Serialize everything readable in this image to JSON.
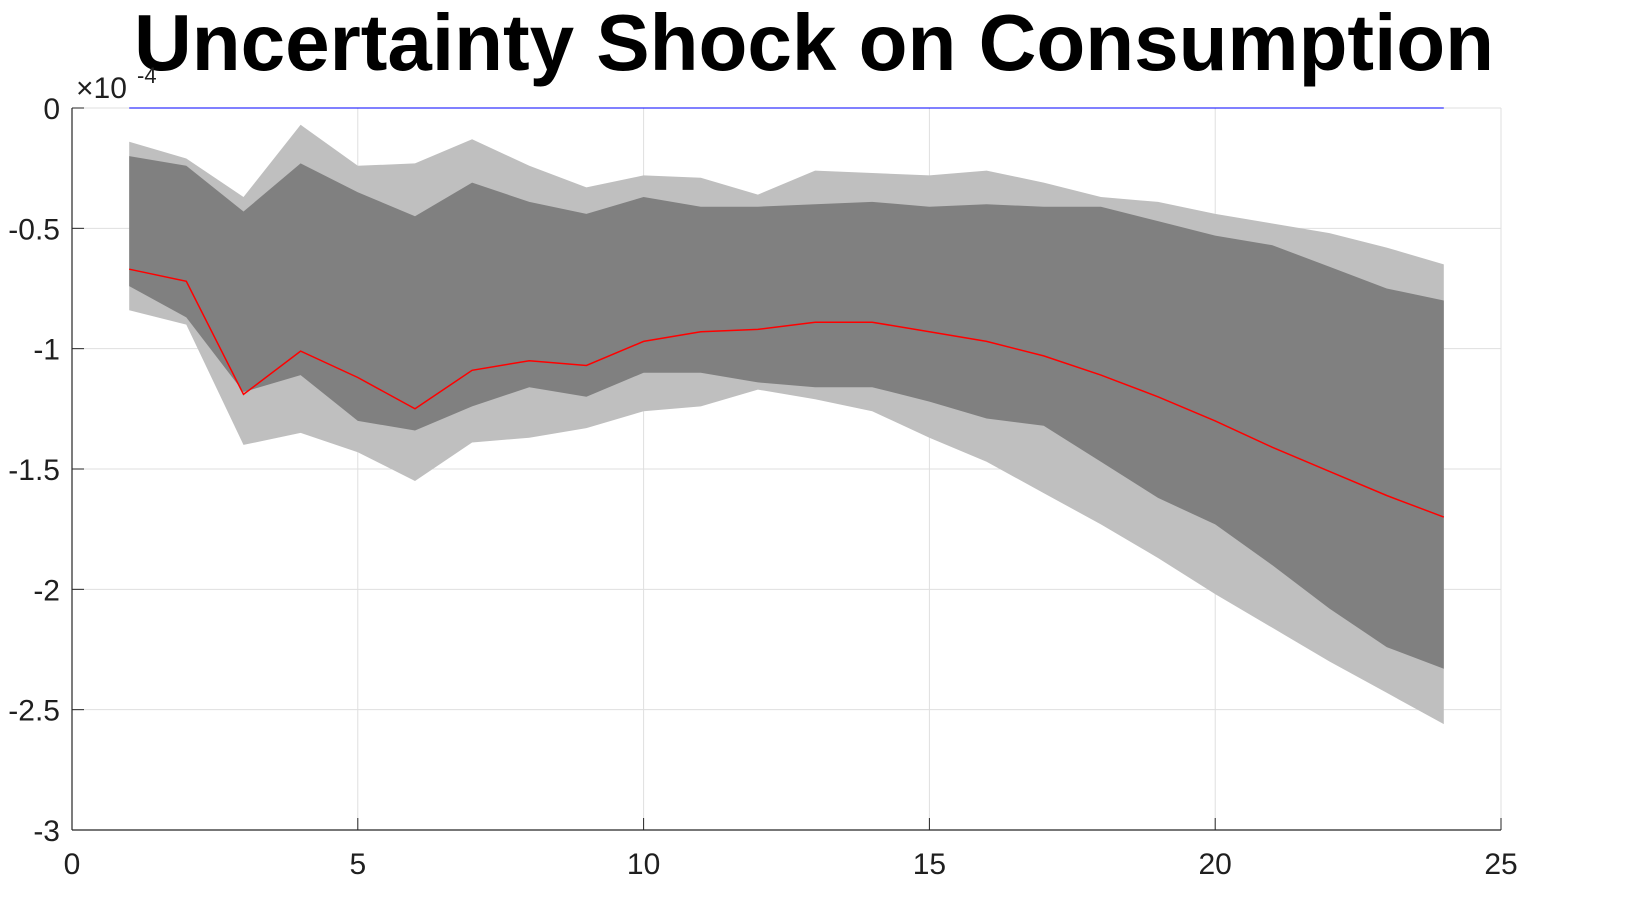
{
  "chart_data": {
    "type": "area",
    "title": "Uncertainty Shock on Consumption",
    "xlabel": "",
    "ylabel": "",
    "xlim": [
      0,
      25
    ],
    "ylim": [
      -3,
      0
    ],
    "x_ticks": [
      "0",
      "5",
      "10",
      "15",
      "20",
      "25"
    ],
    "y_ticks": [
      "0",
      "-0.5",
      "-1",
      "-1.5",
      "-2",
      "-2.5",
      "-3"
    ],
    "y_exponent_label": "×10",
    "y_exponent_power": "-4",
    "grid": true,
    "legend": "none",
    "x": [
      1,
      2,
      3,
      4,
      5,
      6,
      7,
      8,
      9,
      10,
      11,
      12,
      13,
      14,
      15,
      16,
      17,
      18,
      19,
      20,
      21,
      22,
      23,
      24
    ],
    "series": [
      {
        "role": "outer-band-upper",
        "color": "#bfbfbf",
        "values": [
          -0.14,
          -0.21,
          -0.37,
          -0.07,
          -0.24,
          -0.23,
          -0.13,
          -0.24,
          -0.33,
          -0.28,
          -0.29,
          -0.36,
          -0.26,
          -0.27,
          -0.28,
          -0.26,
          -0.31,
          -0.37,
          -0.39,
          -0.44,
          -0.48,
          -0.52,
          -0.58,
          -0.65
        ]
      },
      {
        "role": "outer-band-lower",
        "color": "#bfbfbf",
        "values": [
          -0.84,
          -0.9,
          -1.4,
          -1.35,
          -1.43,
          -1.55,
          -1.39,
          -1.37,
          -1.33,
          -1.26,
          -1.24,
          -1.17,
          -1.21,
          -1.26,
          -1.37,
          -1.47,
          -1.6,
          -1.73,
          -1.87,
          -2.02,
          -2.16,
          -2.3,
          -2.43,
          -2.56
        ]
      },
      {
        "role": "inner-band-upper",
        "color": "#808080",
        "values": [
          -0.2,
          -0.24,
          -0.43,
          -0.23,
          -0.35,
          -0.45,
          -0.31,
          -0.39,
          -0.44,
          -0.37,
          -0.41,
          -0.41,
          -0.4,
          -0.39,
          -0.41,
          -0.4,
          -0.41,
          -0.41,
          -0.47,
          -0.53,
          -0.57,
          -0.66,
          -0.75,
          -0.8
        ]
      },
      {
        "role": "inner-band-lower",
        "color": "#808080",
        "values": [
          -0.74,
          -0.87,
          -1.18,
          -1.11,
          -1.3,
          -1.34,
          -1.24,
          -1.16,
          -1.2,
          -1.1,
          -1.1,
          -1.14,
          -1.16,
          -1.16,
          -1.22,
          -1.29,
          -1.32,
          -1.47,
          -1.62,
          -1.73,
          -1.9,
          -2.08,
          -2.24,
          -2.33
        ]
      },
      {
        "role": "median",
        "color": "#ff0000",
        "values": [
          -0.67,
          -0.72,
          -1.19,
          -1.01,
          -1.12,
          -1.25,
          -1.09,
          -1.05,
          -1.07,
          -0.97,
          -0.93,
          -0.92,
          -0.89,
          -0.89,
          -0.93,
          -0.97,
          -1.03,
          -1.11,
          -1.2,
          -1.3,
          -1.41,
          -1.51,
          -1.61,
          -1.7
        ]
      },
      {
        "role": "zero-line",
        "color": "#0000ff",
        "values": [
          0,
          0,
          0,
          0,
          0,
          0,
          0,
          0,
          0,
          0,
          0,
          0,
          0,
          0,
          0,
          0,
          0,
          0,
          0,
          0,
          0,
          0,
          0,
          0
        ]
      }
    ]
  }
}
